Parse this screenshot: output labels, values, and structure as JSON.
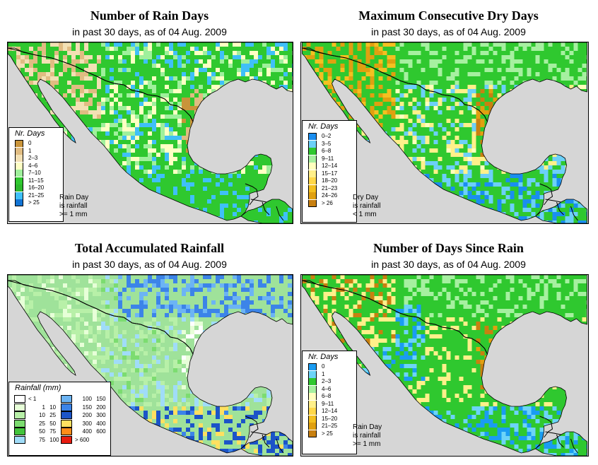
{
  "panels": [
    {
      "title": "Number of Rain Days",
      "subtitle": "in past 30 days, as of  04 Aug. 2009",
      "land_color": "#2fc82f",
      "legend": {
        "title": "Nr. Days",
        "items": [
          {
            "label": "0",
            "color": "#c9943a"
          },
          {
            "label": "1",
            "color": "#e0bc82"
          },
          {
            "label": "2–3",
            "color": "#f2e0b4"
          },
          {
            "label": "4–6",
            "color": "#ffffc4"
          },
          {
            "label": "7–10",
            "color": "#9ff09c"
          },
          {
            "label": "11–15",
            "color": "#2fc82f"
          },
          {
            "label": "16–20",
            "color": "#2db82d"
          },
          {
            "label": "21–25",
            "color": "#3fc0f8"
          },
          {
            "label": "> 25",
            "color": "#1274d4"
          }
        ]
      },
      "note": [
        "Rain Day",
        "is rainfall",
        ">= 1 mm"
      ]
    },
    {
      "title": "Maximum Consecutive Dry Days",
      "subtitle": "in past 30 days, as of  04 Aug. 2009",
      "land_color": "#2fc82f",
      "legend": {
        "title": "Nr. Days",
        "items": [
          {
            "label": "0–2",
            "color": "#1a8ef0"
          },
          {
            "label": "3–5",
            "color": "#6cd0f8"
          },
          {
            "label": "6–8",
            "color": "#2fc82f"
          },
          {
            "label": "9–11",
            "color": "#a6f0a0"
          },
          {
            "label": "12–14",
            "color": "#ffffbe"
          },
          {
            "label": "15–17",
            "color": "#fff08a"
          },
          {
            "label": "18–20",
            "color": "#ffd84a"
          },
          {
            "label": "21–23",
            "color": "#f4c020"
          },
          {
            "label": "24–26",
            "color": "#e0a010"
          },
          {
            "label": "> 26",
            "color": "#c88010"
          }
        ]
      },
      "note": [
        "Dry Day",
        "is rainfall",
        "< 1 mm"
      ]
    },
    {
      "title": "Total Accumulated Rainfall",
      "subtitle": "in past 30 days, as of  04 Aug. 2009",
      "land_color": "#9fe29a",
      "legend": {
        "title": "Rainfall (mm)",
        "col1": [
          {
            "lo": "< 1",
            "hi": "",
            "color": "#ffffff"
          },
          {
            "lo": "1",
            "hi": "10",
            "color": "#e7ffd8"
          },
          {
            "lo": "10",
            "hi": "25",
            "color": "#b8f0a8"
          },
          {
            "lo": "25",
            "hi": "50",
            "color": "#7cdc70"
          },
          {
            "lo": "50",
            "hi": "75",
            "color": "#43c43c"
          },
          {
            "lo": "75",
            "hi": "100",
            "color": "#a0dcf8"
          }
        ],
        "col2": [
          {
            "lo": "100",
            "hi": "150",
            "color": "#6cb4f4"
          },
          {
            "lo": "150",
            "hi": "200",
            "color": "#3c84e8"
          },
          {
            "lo": "200",
            "hi": "300",
            "color": "#1c54c8"
          },
          {
            "lo": "300",
            "hi": "400",
            "color": "#ffe060"
          },
          {
            "lo": "400",
            "hi": "600",
            "color": "#ff8c1a"
          },
          {
            "lo": "> 600",
            "hi": "",
            "color": "#e81c10"
          }
        ]
      }
    },
    {
      "title": "Number of Days Since Rain",
      "subtitle": "in past 30 days, as of  04 Aug. 2009",
      "land_color": "#2fc82f",
      "legend": {
        "title": "Nr. Days",
        "items": [
          {
            "label": "0",
            "color": "#1a9cf2"
          },
          {
            "label": "1",
            "color": "#6cd4f8"
          },
          {
            "label": "2–3",
            "color": "#2fc82f"
          },
          {
            "label": "4–6",
            "color": "#a6f0a0"
          },
          {
            "label": "6–8",
            "color": "#ffffbe"
          },
          {
            "label": "9–11",
            "color": "#fff08a"
          },
          {
            "label": "12–14",
            "color": "#ffd84a"
          },
          {
            "label": "15–20",
            "color": "#f4c020"
          },
          {
            "label": "21–25",
            "color": "#e0a010"
          },
          {
            "label": "> 25",
            "color": "#c88010"
          }
        ]
      },
      "note": [
        "Rain Day",
        "is rainfall",
        ">= 1 mm"
      ]
    }
  ],
  "colors": {
    "ocean": "#d6d6d6",
    "border": "#000000"
  }
}
